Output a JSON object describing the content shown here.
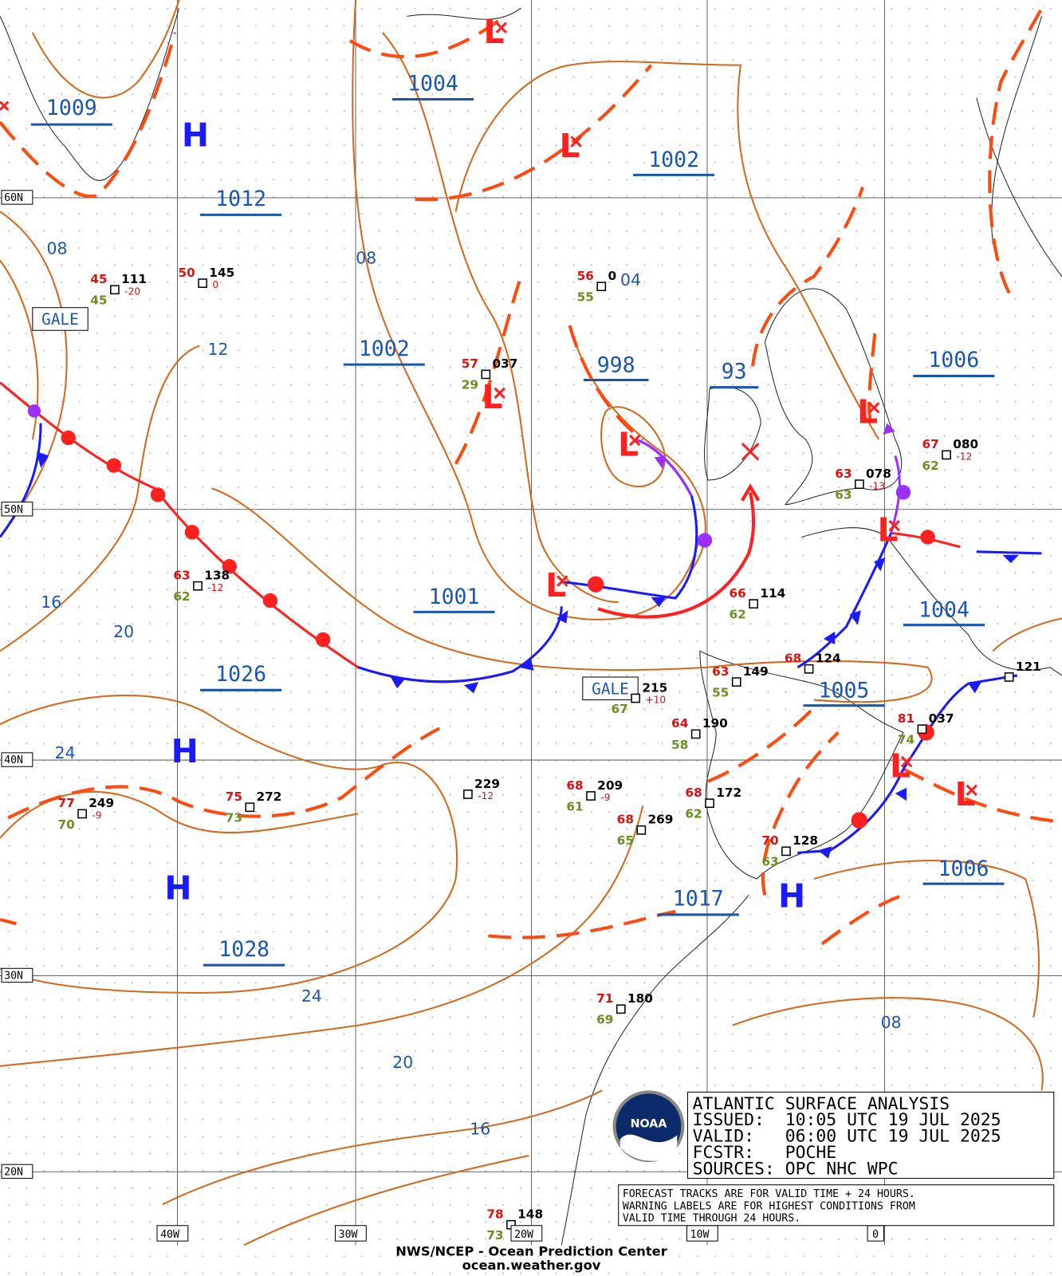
{
  "isobar_labels_major": [
    "1009",
    "1004",
    "1002",
    "1012",
    "1002",
    "998",
    "93",
    "1006",
    "1001",
    "1004",
    "1026",
    "1005",
    "1017",
    "1006",
    "1028"
  ],
  "isobar_labels_minor": [
    "08",
    "08",
    "04",
    "12",
    "16",
    "20",
    "24",
    "24",
    "20",
    "16",
    "08"
  ],
  "high_centers": [
    "H",
    "H",
    "H",
    "H"
  ],
  "low_centers": [
    "L",
    "L",
    "L",
    "L",
    "L",
    "L",
    "L",
    "L",
    "L"
  ],
  "latitude_labels": [
    "60N",
    "50N",
    "40N",
    "30N",
    "20N"
  ],
  "longitude_labels": [
    "40W",
    "30W",
    "20W",
    "10W",
    "0"
  ],
  "warnings": [
    "GALE",
    "GALE"
  ],
  "stations": [
    {
      "temperature": "45",
      "pressure": "111",
      "tendency": "-20",
      "dewpoint": "45"
    },
    {
      "temperature": "50",
      "pressure": "145",
      "tendency": "0"
    },
    {
      "temperature": "56",
      "pressure": "0",
      "dewpoint": "55"
    },
    {
      "temperature": "57",
      "pressure": "037",
      "dewpoint": "29"
    },
    {
      "temperature": "63",
      "pressure": "138",
      "tendency": "-12",
      "dewpoint": "62"
    },
    {
      "temperature": "66",
      "pressure": "114",
      "dewpoint": "62"
    },
    {
      "temperature": "67",
      "pressure": "080",
      "tendency": "-12",
      "dewpoint": "62"
    },
    {
      "temperature": "63",
      "pressure": "078",
      "tendency": "-13",
      "dewpoint": "63"
    },
    {
      "temperature": "68",
      "pressure": "124"
    },
    {
      "temperature": "63",
      "pressure": "149",
      "dewpoint": "55"
    },
    {
      "pressure": "215",
      "tendency": "+10",
      "dewpoint": "67"
    },
    {
      "temperature": "64",
      "pressure": "190",
      "dewpoint": "58"
    },
    {
      "pressure": "229",
      "tendency": "-12"
    },
    {
      "temperature": "68",
      "pressure": "209",
      "tendency": "-9",
      "dewpoint": "61"
    },
    {
      "temperature": "68",
      "pressure": "269",
      "dewpoint": "65"
    },
    {
      "temperature": "68",
      "pressure": "172",
      "dewpoint": "62"
    },
    {
      "temperature": "75",
      "pressure": "272",
      "dewpoint": "73"
    },
    {
      "temperature": "77",
      "pressure": "249",
      "tendency": "-9",
      "dewpoint": "70"
    },
    {
      "temperature": "70",
      "pressure": "128",
      "dewpoint": "63"
    },
    {
      "temperature": "81",
      "pressure": "037",
      "dewpoint": "74"
    },
    {
      "pressure": "121"
    },
    {
      "temperature": "71",
      "pressure": "180",
      "dewpoint": "69"
    },
    {
      "temperature": "78",
      "pressure": "148",
      "dewpoint": "73"
    }
  ],
  "info_box": {
    "title": "ATLANTIC SURFACE ANALYSIS",
    "lines": [
      "ISSUED:  10:05 UTC 19 JUL 2025",
      "VALID:   06:00 UTC 19 JUL 2025",
      "FCSTR:   POCHE",
      "SOURCES: OPC NHC WPC"
    ]
  },
  "notes": [
    "FORECAST TRACKS ARE FOR VALID TIME + 24 HOURS.",
    "WARNING LABELS ARE FOR HIGHEST CONDITIONS FROM",
    "VALID TIME THROUGH 24 HOURS."
  ],
  "logo_text": "NOAA",
  "footer": [
    "NWS/NCEP - Ocean Prediction Center",
    "ocean.weather.gov"
  ]
}
